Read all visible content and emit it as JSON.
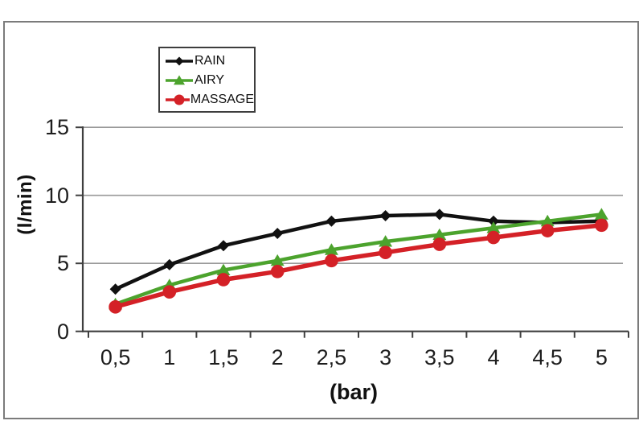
{
  "window": {
    "background": "#ffffff",
    "frame_border_color": "#7b7b7b"
  },
  "chart_data": {
    "type": "line",
    "title": "",
    "xlabel": "(bar)",
    "ylabel": "(l/min)",
    "x": [
      0.5,
      1,
      1.5,
      2,
      2.5,
      3,
      3.5,
      4,
      4.5,
      5
    ],
    "x_tick_labels": [
      "0,5",
      "1",
      "1,5",
      "2",
      "2,5",
      "3",
      "3,5",
      "4",
      "4,5",
      "5"
    ],
    "y_ticks": [
      0,
      5,
      10,
      15
    ],
    "y_tick_labels": [
      "0",
      "5",
      "10",
      "15"
    ],
    "ylim": [
      0,
      15
    ],
    "grid": true,
    "gridline_color": "#999999",
    "axis_color": "#3f3f3f",
    "tick_label_color": "#1d1d1d",
    "legend_position": "top-left",
    "series": [
      {
        "name": "RAIN",
        "color": "#111111",
        "marker": "diamond",
        "values": [
          3.1,
          4.9,
          6.3,
          7.2,
          8.1,
          8.5,
          8.6,
          8.1,
          8.0,
          8.1
        ]
      },
      {
        "name": "AIRY",
        "color": "#4ca32d",
        "marker": "triangle",
        "values": [
          2.0,
          3.4,
          4.5,
          5.2,
          6.0,
          6.6,
          7.1,
          7.6,
          8.1,
          8.6
        ]
      },
      {
        "name": "MASSAGE",
        "color": "#d42127",
        "marker": "circle",
        "values": [
          1.8,
          2.9,
          3.8,
          4.4,
          5.2,
          5.8,
          6.4,
          6.9,
          7.4,
          7.8
        ]
      }
    ]
  }
}
